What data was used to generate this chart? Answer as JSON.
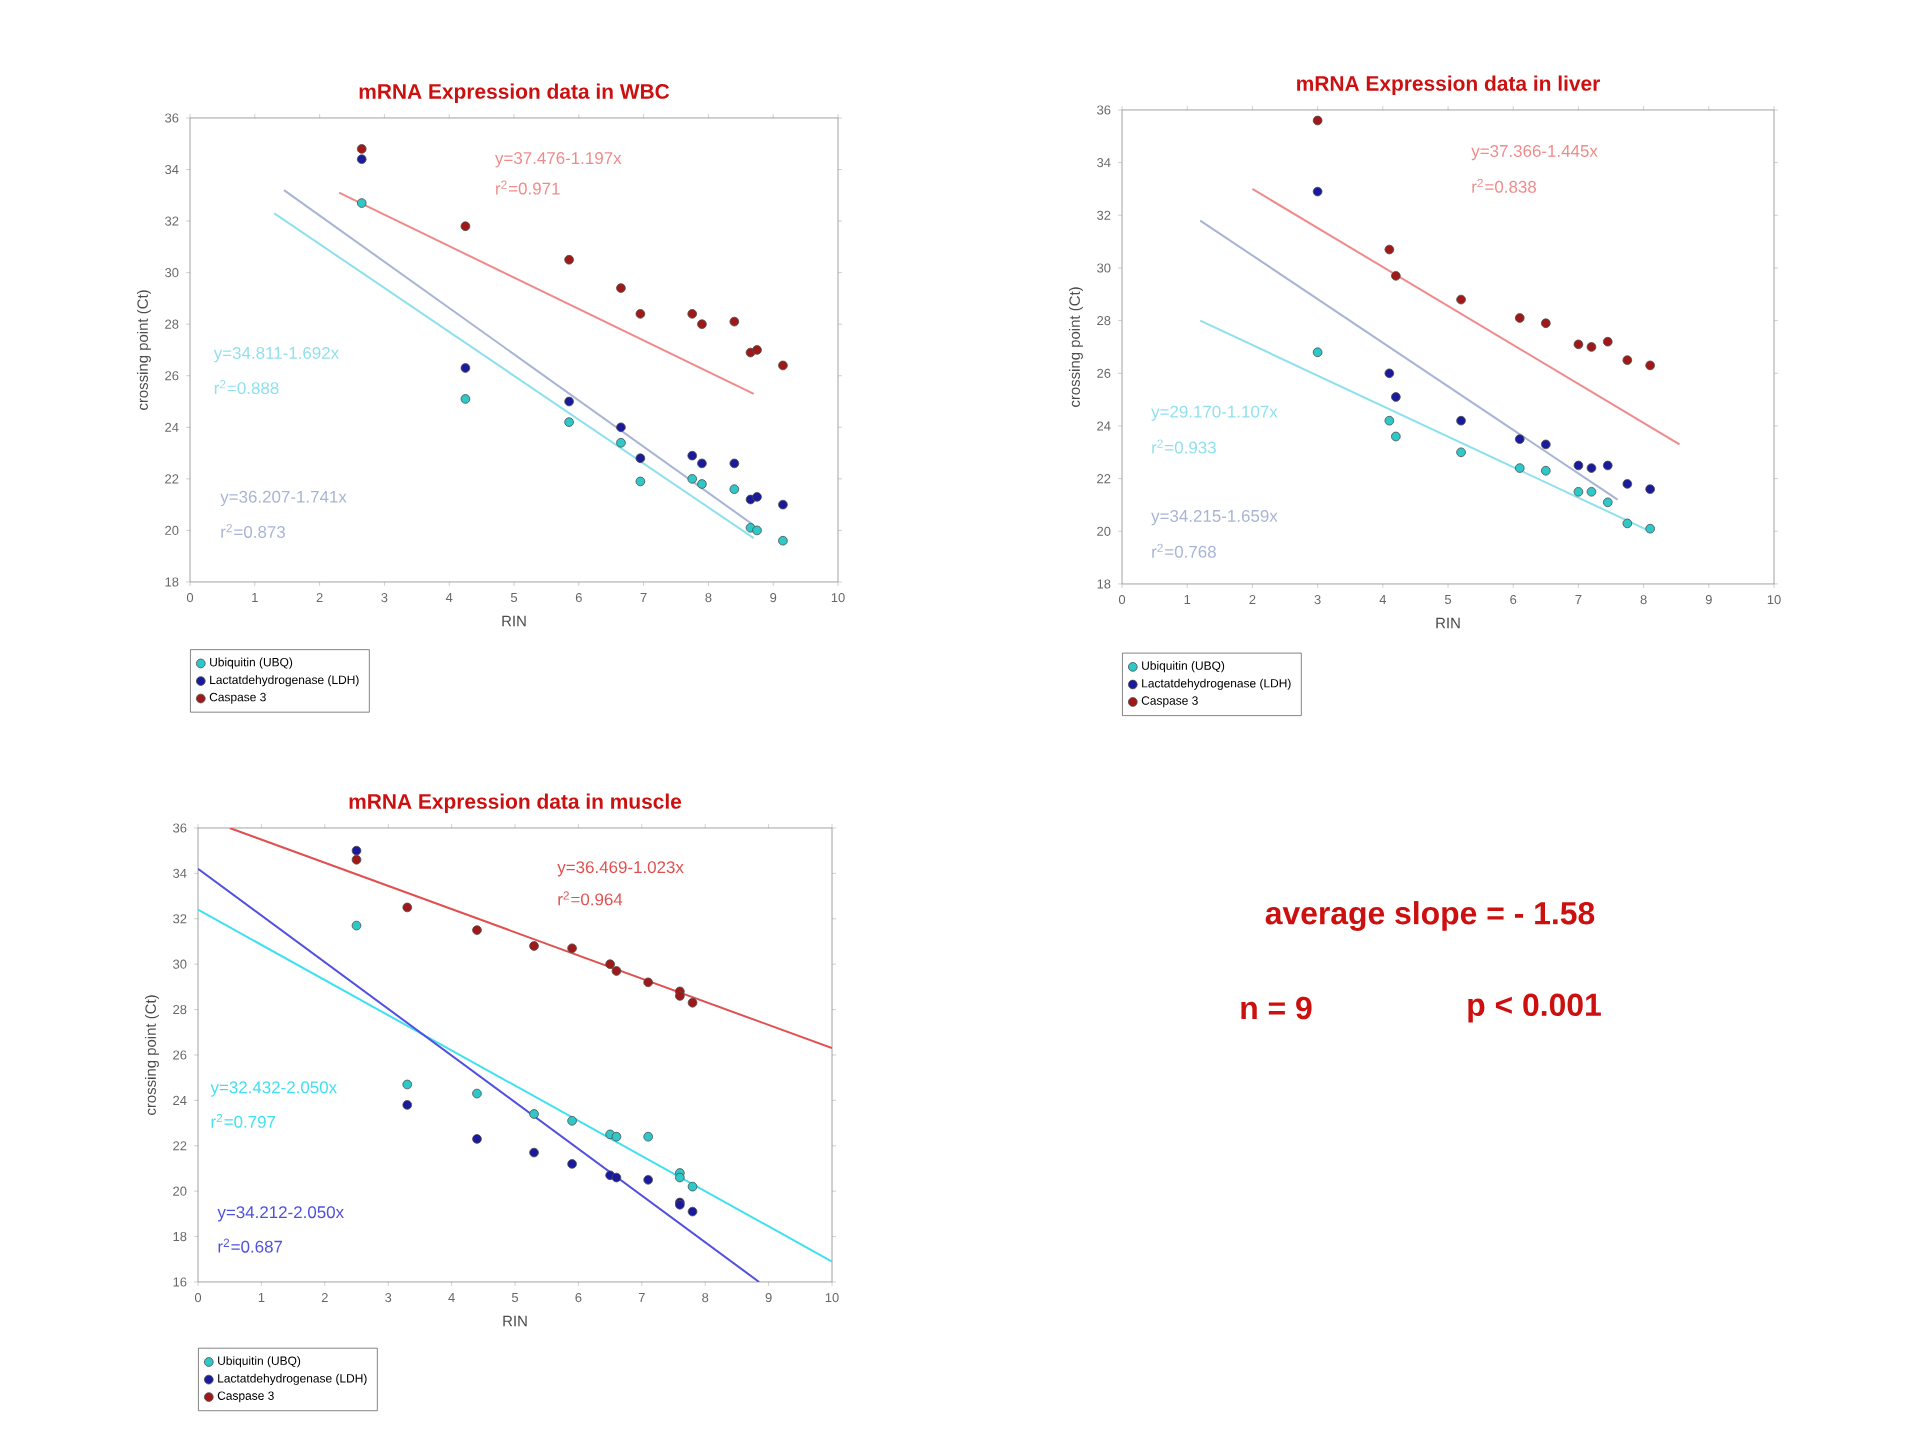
{
  "chart_data": [
    {
      "type": "scatter",
      "title": "mRNA Expression data in WBC",
      "xlabel": "RIN",
      "ylabel": "crossing point (Ct)",
      "xlim": [
        0,
        10
      ],
      "ylim": [
        18,
        36
      ],
      "xticks": [
        0,
        1,
        2,
        3,
        4,
        5,
        6,
        7,
        8,
        9,
        10
      ],
      "yticks": [
        18,
        20,
        22,
        24,
        26,
        28,
        30,
        32,
        34,
        36
      ],
      "legend": "bottom left",
      "series": [
        {
          "name": "Ubiquitin (UBQ)",
          "marker": "circle",
          "color": "#2ec8c8",
          "x": [
            2.65,
            4.25,
            5.85,
            6.65,
            6.95,
            7.75,
            7.9,
            8.4,
            8.65,
            8.75,
            9.15
          ],
          "values": [
            32.7,
            25.1,
            24.2,
            23.4,
            21.9,
            22.0,
            21.8,
            21.6,
            20.1,
            20.0,
            19.6
          ]
        },
        {
          "name": "Lactatdehydrogenase (LDH)",
          "marker": "circle",
          "color": "#1a1a9c",
          "x": [
            2.65,
            4.25,
            5.85,
            6.65,
            6.95,
            7.75,
            7.9,
            8.4,
            8.65,
            8.75,
            9.15
          ],
          "values": [
            34.4,
            26.3,
            25.0,
            24.0,
            22.8,
            22.9,
            22.6,
            22.6,
            21.2,
            21.3,
            21.0
          ]
        },
        {
          "name": "Caspase 3",
          "marker": "circle",
          "color": "#a01818",
          "x": [
            2.65,
            4.25,
            5.85,
            6.65,
            6.95,
            7.75,
            7.9,
            8.4,
            8.65,
            8.75,
            9.15
          ],
          "values": [
            34.8,
            31.8,
            30.5,
            29.4,
            28.4,
            28.4,
            28.0,
            28.1,
            26.9,
            27.0,
            26.4
          ]
        },
        {
          "type": "line",
          "marker": "none",
          "color": "#f08a8a",
          "x": [
            2.3,
            8.7
          ],
          "values": [
            33.1,
            25.3
          ]
        },
        {
          "type": "line",
          "marker": "none",
          "color": "#8ee0ee",
          "x": [
            1.3,
            8.7
          ],
          "values": [
            32.3,
            19.7
          ]
        },
        {
          "type": "line",
          "marker": "none",
          "color": "#a8b4d4",
          "x": [
            1.45,
            8.7
          ],
          "values": [
            33.2,
            20.2
          ]
        }
      ],
      "annotations": [
        "y=37.476-1.197x",
        "r$^{2}$=0.971",
        "y=34.811-1.692x",
        "r$^{2}$=0.888",
        "y=36.207-1.741x",
        "r$^{2}$=0.873"
      ]
    },
    {
      "type": "scatter",
      "title": "mRNA Expression data in liver",
      "xlabel": "RIN",
      "ylabel": "crossing point (Ct)",
      "xlim": [
        0,
        10
      ],
      "ylim": [
        18,
        36
      ],
      "xticks": [
        0,
        1,
        2,
        3,
        4,
        5,
        6,
        7,
        8,
        9,
        10
      ],
      "yticks": [
        18,
        20,
        22,
        24,
        26,
        28,
        30,
        32,
        34,
        36
      ],
      "legend": "bottom left",
      "series": [
        {
          "name": "Ubiquitin (UBQ)",
          "marker": "circle",
          "color": "#2ec8c8",
          "x": [
            3.0,
            4.1,
            4.2,
            5.2,
            6.1,
            6.5,
            7.0,
            7.2,
            7.45,
            7.75,
            8.1
          ],
          "values": [
            26.8,
            24.2,
            23.6,
            23.0,
            22.4,
            22.3,
            21.5,
            21.5,
            21.1,
            20.3,
            20.1
          ]
        },
        {
          "name": "Lactatdehydrogenase (LDH)",
          "marker": "circle",
          "color": "#1a1a9c",
          "x": [
            3.0,
            4.1,
            4.2,
            5.2,
            6.1,
            6.5,
            7.0,
            7.2,
            7.45,
            7.75,
            8.1
          ],
          "values": [
            32.9,
            26.0,
            25.1,
            24.2,
            23.5,
            23.3,
            22.5,
            22.4,
            22.5,
            21.8,
            21.6
          ]
        },
        {
          "name": "Caspase 3",
          "marker": "circle",
          "color": "#a01818",
          "x": [
            3.0,
            4.1,
            4.2,
            5.2,
            6.1,
            6.5,
            7.0,
            7.2,
            7.45,
            7.75,
            8.1
          ],
          "values": [
            35.6,
            30.7,
            29.7,
            28.8,
            28.1,
            27.9,
            27.1,
            27.0,
            27.2,
            26.5,
            26.3
          ]
        },
        {
          "type": "line",
          "marker": "none",
          "color": "#f08a8a",
          "x": [
            2.0,
            8.55
          ],
          "values": [
            33.0,
            23.3
          ]
        },
        {
          "type": "line",
          "marker": "none",
          "color": "#8ee0ee",
          "x": [
            1.2,
            8.1
          ],
          "values": [
            28.0,
            20.0
          ]
        },
        {
          "type": "line",
          "marker": "none",
          "color": "#a8b4d4",
          "x": [
            1.2,
            7.6
          ],
          "values": [
            31.8,
            21.2
          ]
        }
      ],
      "annotations": [
        "y=37.366-1.445x",
        "r$^{2}$=0.838",
        "y=29.170-1.107x",
        "r$^{2}$=0.933",
        "y=34.215-1.659x",
        "r$^{2}$=0.768"
      ]
    },
    {
      "type": "scatter",
      "title": "mRNA Expression data in muscle",
      "xlabel": "RIN",
      "ylabel": "crossing point (Ct)",
      "xlim": [
        0,
        10
      ],
      "ylim": [
        16,
        36
      ],
      "xticks": [
        0,
        1,
        2,
        3,
        4,
        5,
        6,
        7,
        8,
        9,
        10
      ],
      "yticks": [
        16,
        18,
        20,
        22,
        24,
        26,
        28,
        30,
        32,
        34,
        36
      ],
      "legend": "bottom left",
      "series": [
        {
          "name": "Ubiquitin (UBQ)",
          "marker": "circle",
          "color": "#2ec8c8",
          "x": [
            2.5,
            3.3,
            4.4,
            5.3,
            5.9,
            6.5,
            6.6,
            7.1,
            7.6,
            7.6,
            7.8
          ],
          "values": [
            31.7,
            24.7,
            24.3,
            23.4,
            23.1,
            22.5,
            22.4,
            22.4,
            20.8,
            20.6,
            20.2
          ]
        },
        {
          "name": "Lactatdehydrogenase (LDH)",
          "marker": "circle",
          "color": "#1a1a9c",
          "x": [
            2.5,
            3.3,
            4.4,
            5.3,
            5.9,
            6.5,
            6.6,
            7.1,
            7.6,
            7.6,
            7.8
          ],
          "values": [
            35.0,
            23.8,
            22.3,
            21.7,
            21.2,
            20.7,
            20.6,
            20.5,
            19.5,
            19.4,
            19.1
          ]
        },
        {
          "name": "Caspase 3",
          "marker": "circle",
          "color": "#a01818",
          "x": [
            2.5,
            3.3,
            4.4,
            5.3,
            5.9,
            6.5,
            6.6,
            7.1,
            7.6,
            7.6,
            7.8
          ],
          "values": [
            34.6,
            32.5,
            31.5,
            30.8,
            30.7,
            30.0,
            29.7,
            29.2,
            28.8,
            28.6,
            28.3
          ]
        },
        {
          "type": "line",
          "marker": "none",
          "color": "#e05050",
          "x": [
            0.5,
            10
          ],
          "values": [
            36.0,
            26.3
          ]
        },
        {
          "type": "line",
          "marker": "none",
          "color": "#40e0f0",
          "x": [
            0,
            10
          ],
          "values": [
            32.4,
            16.9
          ]
        },
        {
          "type": "line",
          "marker": "none",
          "color": "#5050e0",
          "x": [
            0,
            8.85
          ],
          "values": [
            34.2,
            16.0
          ]
        }
      ],
      "annotations": [
        "y=36.469-1.023x",
        "r$^{2}$=0.964",
        "y=32.432-2.050x",
        "r$^{2}$=0.797",
        "y=34.212-2.050x",
        "r$^{2}$=0.687"
      ]
    },
    {
      "type": "other",
      "annotations": [
        "average slope = - 1.58",
        "n = 9",
        "p < 0.001"
      ]
    }
  ]
}
